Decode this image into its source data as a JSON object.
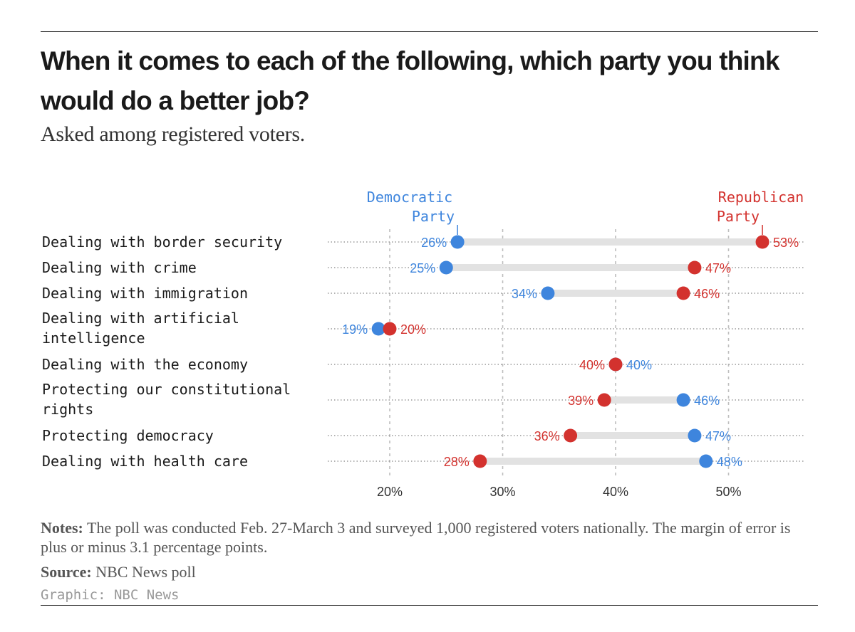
{
  "title": "When it comes to each of the following, which party you think would do a better job?",
  "subtitle": "Asked among registered voters.",
  "colors": {
    "democratic": "#3e85dd",
    "republican": "#d3322e",
    "bar": "#e2e2e2",
    "grid": "#bdbdbd"
  },
  "chart_data": {
    "type": "dot-range",
    "series": [
      {
        "name": "Democratic Party",
        "label_lines": [
          "Democratic",
          "Party"
        ],
        "key": "dem"
      },
      {
        "name": "Republican Party",
        "label_lines": [
          "Republican",
          "Party"
        ],
        "key": "rep"
      }
    ],
    "categories": [
      "Dealing with border security",
      "Dealing with crime",
      "Dealing with immigration",
      "Dealing with artificial intelligence",
      "Dealing with the economy",
      "Protecting our constitutional rights",
      "Protecting democracy",
      "Dealing with health care"
    ],
    "category_lines": [
      [
        "Dealing with border security"
      ],
      [
        "Dealing with crime"
      ],
      [
        "Dealing with immigration"
      ],
      [
        "Dealing with artificial",
        "intelligence"
      ],
      [
        "Dealing with the economy"
      ],
      [
        "Protecting our constitutional",
        "rights"
      ],
      [
        "Protecting democracy"
      ],
      [
        "Dealing with health care"
      ]
    ],
    "dem": [
      26,
      25,
      34,
      19,
      40,
      46,
      47,
      48
    ],
    "rep": [
      53,
      47,
      46,
      20,
      40,
      39,
      36,
      28
    ],
    "value_suffix": "%",
    "x_ticks": [
      20,
      30,
      40,
      50
    ],
    "x_tick_labels": [
      "20%",
      "30%",
      "40%",
      "50%"
    ],
    "xlim": [
      14,
      56
    ],
    "xlabel": "",
    "ylabel": ""
  },
  "notes": {
    "label": "Notes:",
    "text": "The poll was conducted Feb. 27-March 3 and surveyed 1,000 registered voters nationally. The margin of error is plus or minus 3.1 percentage points."
  },
  "source": {
    "label": "Source:",
    "text": "NBC News poll"
  },
  "credit": "Graphic: NBC News"
}
